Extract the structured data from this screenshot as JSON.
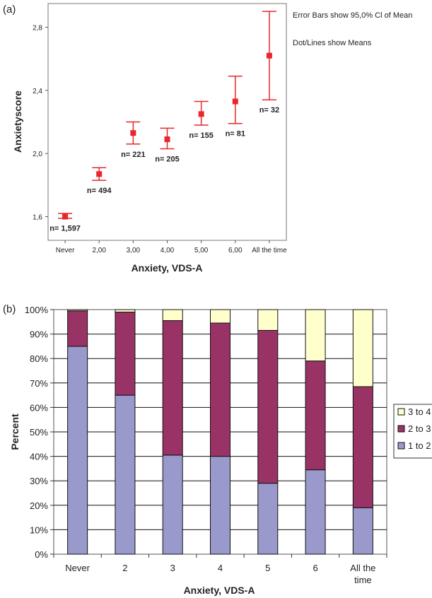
{
  "chart_data": [
    {
      "panel": "(a)",
      "type": "scatter",
      "xlabel": "Anxiety, VDS-A",
      "ylabel": "Anxietyscore",
      "ylim": [
        1.45,
        2.95
      ],
      "yticks": [
        "1,6",
        "2,0",
        "2,4",
        "2,8"
      ],
      "ytick_values": [
        1.6,
        2.0,
        2.4,
        2.8
      ],
      "categories": [
        "Never",
        "2,00",
        "3,00",
        "4,00",
        "5,00",
        "6,00",
        "All the time"
      ],
      "means": [
        1.6,
        1.87,
        2.13,
        2.09,
        2.25,
        2.33,
        2.62
      ],
      "ci_low": [
        1.59,
        1.83,
        2.06,
        2.03,
        2.18,
        2.19,
        2.34
      ],
      "ci_high": [
        1.62,
        1.91,
        2.2,
        2.16,
        2.33,
        2.49,
        2.9
      ],
      "n_labels": [
        "n= 1,597",
        "n= 494",
        "n= 221",
        "n= 205",
        "n= 155",
        "n= 81",
        "n= 32"
      ],
      "notes": [
        "Error Bars show 95,0% Cl of Mean",
        "Dot/Lines show Means"
      ],
      "color": "#e8272c"
    },
    {
      "panel": "(b)",
      "type": "bar",
      "stacked": true,
      "xlabel": "Anxiety, VDS-A",
      "ylabel": "Percent",
      "ylim": [
        0,
        100
      ],
      "yticks": [
        "0%",
        "10%",
        "20%",
        "30%",
        "40%",
        "50%",
        "60%",
        "70%",
        "80%",
        "90%",
        "100%"
      ],
      "categories": [
        "Never",
        "2",
        "3",
        "4",
        "5",
        "6",
        "All the time"
      ],
      "category_lines": [
        [
          "Never"
        ],
        [
          "2"
        ],
        [
          "3"
        ],
        [
          "4"
        ],
        [
          "5"
        ],
        [
          "6"
        ],
        [
          "All the",
          "time"
        ]
      ],
      "series": [
        {
          "name": "1 to 2",
          "values": [
            85,
            65,
            40.5,
            40,
            29,
            34.5,
            19
          ],
          "color": "#9999cc"
        },
        {
          "name": "2 to 3",
          "values": [
            14.5,
            34,
            55,
            54.5,
            62.5,
            44.5,
            49.5
          ],
          "color": "#993366"
        },
        {
          "name": "3 to 4",
          "values": [
            0.5,
            1,
            4.5,
            5.5,
            8.5,
            21,
            31.5
          ],
          "color": "#ffffcc"
        }
      ],
      "legend_position": "right",
      "grid": true
    }
  ]
}
